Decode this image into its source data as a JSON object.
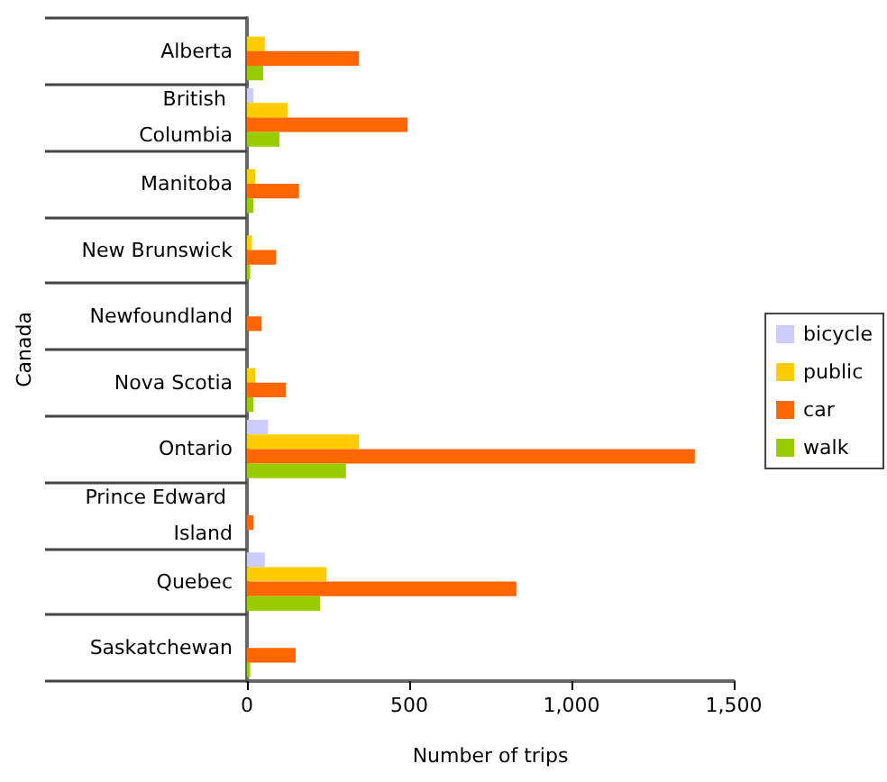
{
  "chart_data": {
    "type": "bar",
    "orientation": "horizontal",
    "ylabel": "Canada",
    "xlabel": "Number of trips",
    "categories": [
      "Alberta",
      "British Columbia",
      "Manitoba",
      "New Brunswick",
      "Newfoundland",
      "Nova Scotia",
      "Ontario",
      "Prince Edward Island",
      "Quebec",
      "Saskatchewan"
    ],
    "series": [
      {
        "name": "bicycle",
        "color": "#ccccff",
        "values": [
          0,
          20,
          0,
          0,
          0,
          0,
          65,
          0,
          55,
          0
        ]
      },
      {
        "name": "public",
        "color": "#ffcc00",
        "values": [
          55,
          125,
          25,
          15,
          0,
          25,
          345,
          0,
          245,
          0
        ]
      },
      {
        "name": "car",
        "color": "#ff6600",
        "values": [
          345,
          495,
          160,
          90,
          45,
          120,
          1380,
          20,
          830,
          150
        ]
      },
      {
        "name": "walk",
        "color": "#99cc00",
        "values": [
          50,
          100,
          20,
          10,
          0,
          20,
          305,
          0,
          225,
          10
        ]
      }
    ],
    "xlim": [
      0,
      1500
    ],
    "xticks": [
      0,
      500,
      {
        "value": 1000,
        "label": "1,000"
      },
      {
        "value": 1500,
        "label": "1,500"
      }
    ],
    "grid": false,
    "legend": "right"
  }
}
